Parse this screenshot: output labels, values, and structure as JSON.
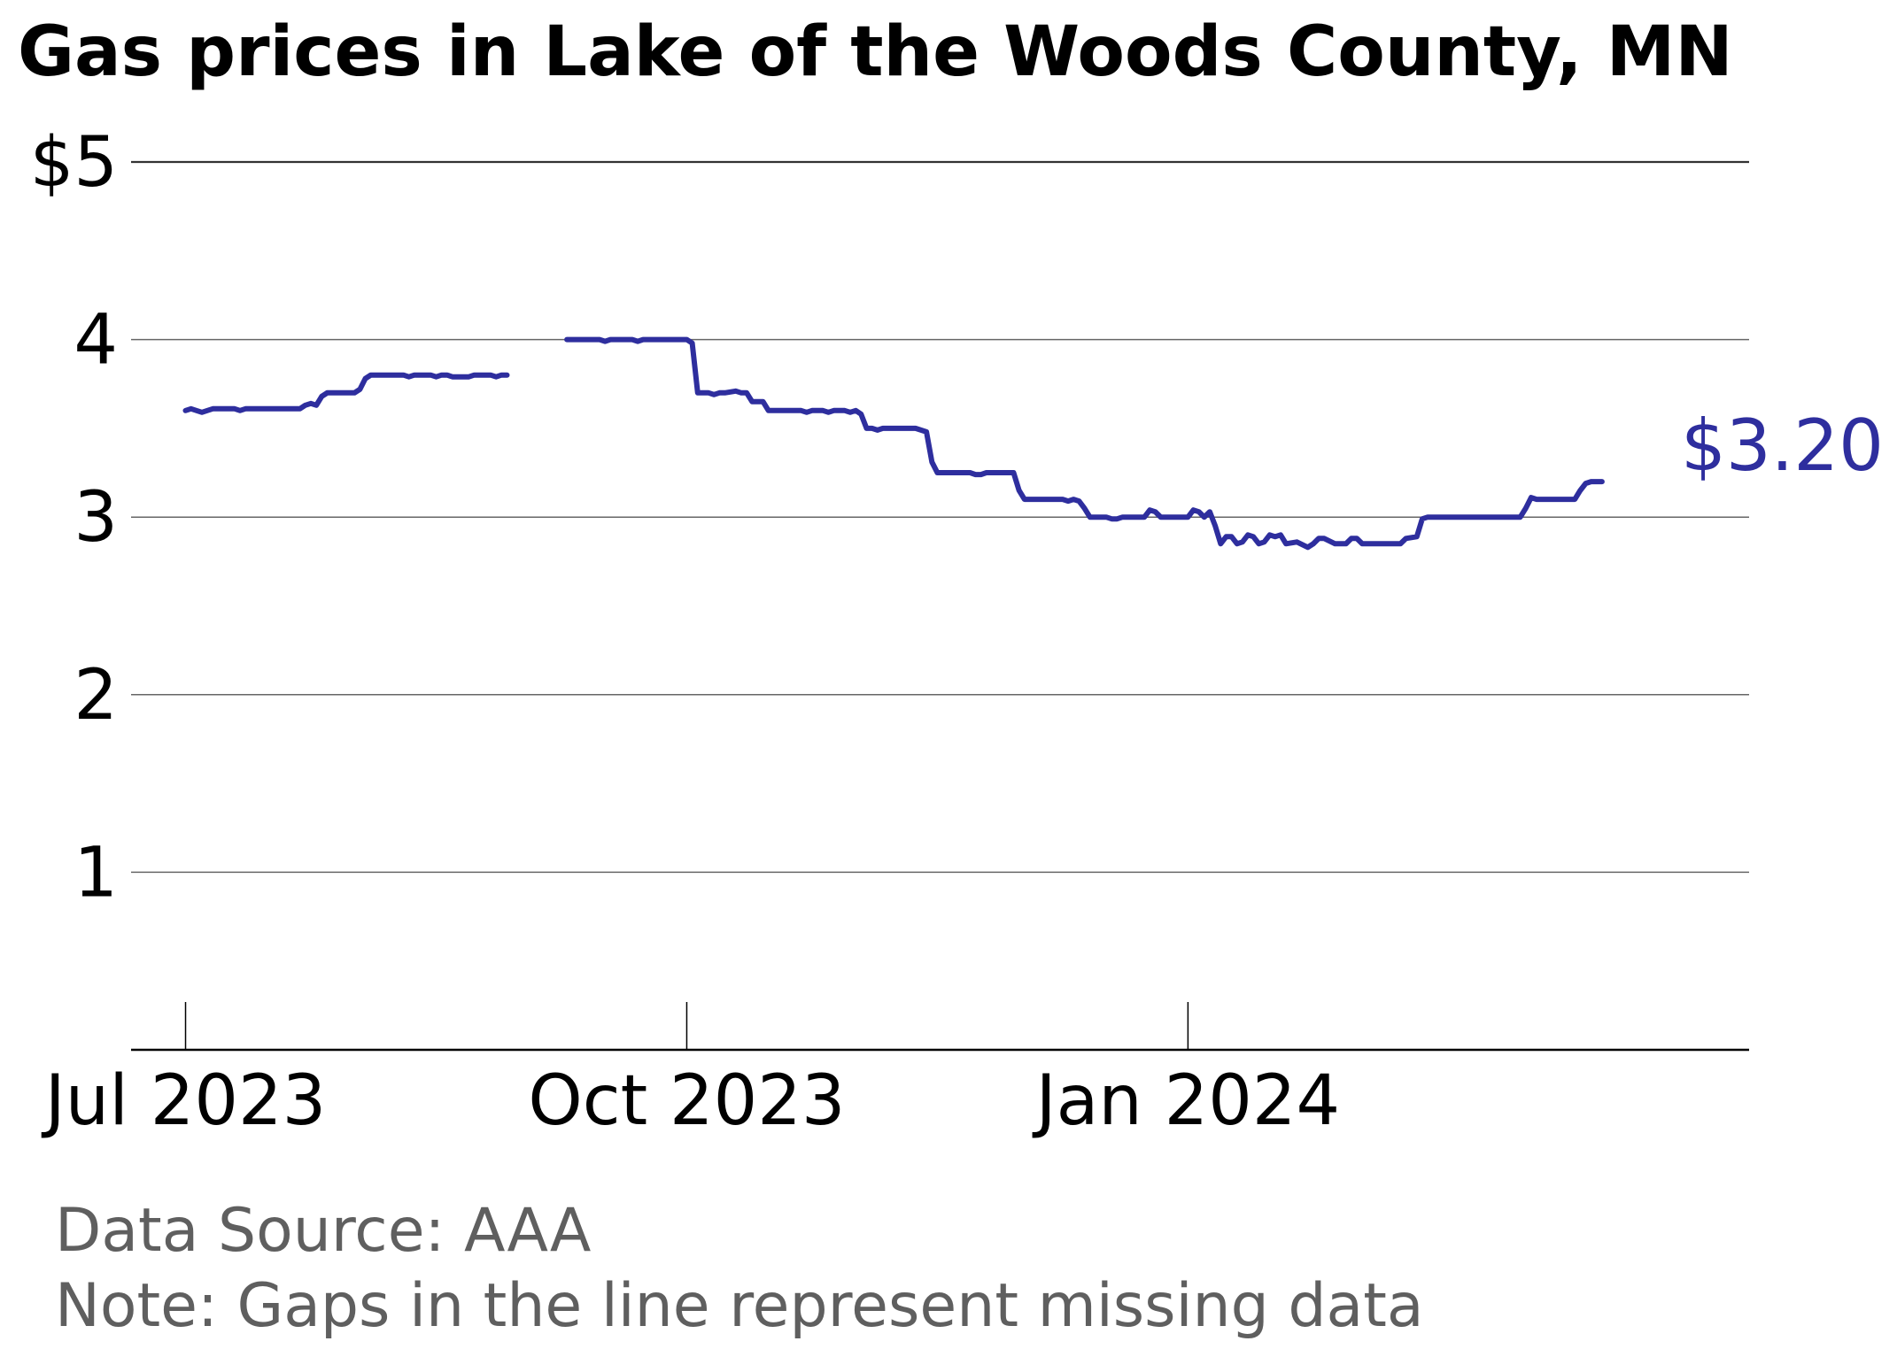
{
  "chart_data": {
    "type": "line",
    "title": "Gas prices in Lake of the Woods County, MN",
    "ylim": [
      0,
      5
    ],
    "yticks": [
      {
        "value": 5,
        "label": "$5"
      },
      {
        "value": 4,
        "label": "4"
      },
      {
        "value": 3,
        "label": "3"
      },
      {
        "value": 2,
        "label": "2"
      },
      {
        "value": 1,
        "label": "1"
      }
    ],
    "xlim": [
      "2023-06-21",
      "2024-04-13"
    ],
    "xticks": [
      {
        "date": "2023-07-01",
        "label": "Jul 2023"
      },
      {
        "date": "2023-10-01",
        "label": "Oct 2023"
      },
      {
        "date": "2024-01-01",
        "label": "Jan 2024"
      }
    ],
    "grid": true,
    "line_color": "#2e2e9e",
    "end_label": "$3.20",
    "notes": [
      "Data Source: AAA",
      "Note: Gaps in the line represent missing data"
    ],
    "series": [
      {
        "segments": [
          [
            [
              "2023-07-01",
              3.6
            ],
            [
              "2023-07-02",
              3.61
            ],
            [
              "2023-07-03",
              3.6
            ],
            [
              "2023-07-04",
              3.59
            ],
            [
              "2023-07-05",
              3.6
            ],
            [
              "2023-07-06",
              3.61
            ],
            [
              "2023-07-10",
              3.61
            ],
            [
              "2023-07-11",
              3.6
            ],
            [
              "2023-07-12",
              3.61
            ],
            [
              "2023-07-22",
              3.61
            ],
            [
              "2023-07-23",
              3.63
            ],
            [
              "2023-07-24",
              3.64
            ],
            [
              "2023-07-25",
              3.63
            ],
            [
              "2023-07-26",
              3.68
            ],
            [
              "2023-07-27",
              3.7
            ],
            [
              "2023-08-01",
              3.7
            ],
            [
              "2023-08-02",
              3.72
            ],
            [
              "2023-08-03",
              3.78
            ],
            [
              "2023-08-04",
              3.8
            ],
            [
              "2023-08-10",
              3.8
            ],
            [
              "2023-08-11",
              3.79
            ],
            [
              "2023-08-12",
              3.8
            ],
            [
              "2023-08-15",
              3.8
            ],
            [
              "2023-08-16",
              3.79
            ],
            [
              "2023-08-17",
              3.8
            ],
            [
              "2023-08-18",
              3.8
            ],
            [
              "2023-08-19",
              3.79
            ],
            [
              "2023-08-22",
              3.79
            ],
            [
              "2023-08-23",
              3.8
            ],
            [
              "2023-08-26",
              3.8
            ],
            [
              "2023-08-27",
              3.79
            ],
            [
              "2023-08-28",
              3.8
            ],
            [
              "2023-08-29",
              3.8
            ]
          ],
          [
            [
              "2023-09-09",
              4.0
            ],
            [
              "2023-09-15",
              4.0
            ],
            [
              "2023-09-16",
              3.99
            ],
            [
              "2023-09-17",
              4.0
            ],
            [
              "2023-09-21",
              4.0
            ],
            [
              "2023-09-22",
              3.99
            ],
            [
              "2023-09-23",
              4.0
            ],
            [
              "2023-10-01",
              4.0
            ],
            [
              "2023-10-02",
              3.98
            ],
            [
              "2023-10-03",
              3.7
            ],
            [
              "2023-10-04",
              3.7
            ],
            [
              "2023-10-05",
              3.7
            ],
            [
              "2023-10-06",
              3.69
            ],
            [
              "2023-10-07",
              3.7
            ],
            [
              "2023-10-08",
              3.7
            ],
            [
              "2023-10-10",
              3.71
            ],
            [
              "2023-10-11",
              3.7
            ],
            [
              "2023-10-12",
              3.7
            ],
            [
              "2023-10-13",
              3.65
            ],
            [
              "2023-10-15",
              3.65
            ],
            [
              "2023-10-16",
              3.6
            ],
            [
              "2023-10-22",
              3.6
            ],
            [
              "2023-10-23",
              3.59
            ],
            [
              "2023-10-24",
              3.6
            ],
            [
              "2023-10-26",
              3.6
            ],
            [
              "2023-10-27",
              3.59
            ],
            [
              "2023-10-28",
              3.6
            ],
            [
              "2023-10-30",
              3.6
            ],
            [
              "2023-10-31",
              3.59
            ],
            [
              "2023-11-01",
              3.6
            ],
            [
              "2023-11-02",
              3.58
            ],
            [
              "2023-11-03",
              3.5
            ],
            [
              "2023-11-04",
              3.5
            ],
            [
              "2023-11-05",
              3.49
            ],
            [
              "2023-11-06",
              3.5
            ],
            [
              "2023-11-12",
              3.5
            ],
            [
              "2023-11-13",
              3.49
            ],
            [
              "2023-11-14",
              3.48
            ],
            [
              "2023-11-15",
              3.31
            ],
            [
              "2023-11-16",
              3.25
            ],
            [
              "2023-11-22",
              3.25
            ],
            [
              "2023-11-23",
              3.24
            ],
            [
              "2023-11-24",
              3.24
            ],
            [
              "2023-11-25",
              3.25
            ],
            [
              "2023-11-30",
              3.25
            ],
            [
              "2023-12-01",
              3.15
            ],
            [
              "2023-12-02",
              3.1
            ],
            [
              "2023-12-09",
              3.1
            ],
            [
              "2023-12-10",
              3.09
            ],
            [
              "2023-12-11",
              3.1
            ],
            [
              "2023-12-12",
              3.09
            ],
            [
              "2023-12-13",
              3.05
            ],
            [
              "2023-12-14",
              3.0
            ],
            [
              "2023-12-17",
              3.0
            ],
            [
              "2023-12-18",
              2.99
            ],
            [
              "2023-12-19",
              2.99
            ],
            [
              "2023-12-20",
              3.0
            ],
            [
              "2023-12-24",
              3.0
            ],
            [
              "2023-12-25",
              3.04
            ],
            [
              "2023-12-26",
              3.03
            ],
            [
              "2023-12-27",
              3.0
            ],
            [
              "2024-01-01",
              3.0
            ],
            [
              "2024-01-02",
              3.04
            ],
            [
              "2024-01-03",
              3.03
            ],
            [
              "2024-01-04",
              3.0
            ],
            [
              "2024-01-05",
              3.03
            ],
            [
              "2024-01-06",
              2.95
            ],
            [
              "2024-01-07",
              2.85
            ],
            [
              "2024-01-08",
              2.89
            ],
            [
              "2024-01-09",
              2.89
            ],
            [
              "2024-01-10",
              2.85
            ],
            [
              "2024-01-11",
              2.86
            ],
            [
              "2024-01-12",
              2.9
            ],
            [
              "2024-01-13",
              2.89
            ],
            [
              "2024-01-14",
              2.85
            ],
            [
              "2024-01-15",
              2.86
            ],
            [
              "2024-01-16",
              2.9
            ],
            [
              "2024-01-17",
              2.89
            ],
            [
              "2024-01-18",
              2.9
            ],
            [
              "2024-01-19",
              2.85
            ],
            [
              "2024-01-21",
              2.86
            ],
            [
              "2024-01-23",
              2.83
            ],
            [
              "2024-01-24",
              2.85
            ],
            [
              "2024-01-25",
              2.88
            ],
            [
              "2024-01-26",
              2.88
            ],
            [
              "2024-01-28",
              2.85
            ],
            [
              "2024-01-30",
              2.85
            ],
            [
              "2024-01-31",
              2.88
            ],
            [
              "2024-02-01",
              2.88
            ],
            [
              "2024-02-02",
              2.85
            ],
            [
              "2024-02-09",
              2.85
            ],
            [
              "2024-02-10",
              2.88
            ],
            [
              "2024-02-12",
              2.89
            ],
            [
              "2024-02-13",
              2.99
            ],
            [
              "2024-02-14",
              3.0
            ],
            [
              "2024-03-02",
              3.0
            ],
            [
              "2024-03-03",
              3.05
            ],
            [
              "2024-03-04",
              3.11
            ],
            [
              "2024-03-05",
              3.1
            ],
            [
              "2024-03-12",
              3.1
            ],
            [
              "2024-03-13",
              3.15
            ],
            [
              "2024-03-14",
              3.19
            ],
            [
              "2024-03-15",
              3.2
            ],
            [
              "2024-03-17",
              3.2
            ]
          ]
        ]
      }
    ]
  }
}
